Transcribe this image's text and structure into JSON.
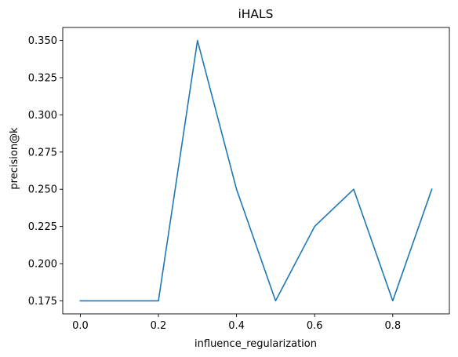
{
  "chart_data": {
    "type": "line",
    "title": "iHALS",
    "xlabel": "influence_regularization",
    "ylabel": "precision@k",
    "xlim": [
      -0.045,
      0.945
    ],
    "ylim": [
      0.16625,
      0.35875
    ],
    "xticks": [
      "0.0",
      "0.2",
      "0.4",
      "0.6",
      "0.8"
    ],
    "yticks": [
      "0.175",
      "0.200",
      "0.225",
      "0.250",
      "0.275",
      "0.300",
      "0.325",
      "0.350"
    ],
    "grid": false,
    "series": [
      {
        "color": "#1f77b4",
        "x": [
          0.0,
          0.1,
          0.2,
          0.3,
          0.4,
          0.5,
          0.6,
          0.7,
          0.8,
          0.9
        ],
        "y": [
          0.175,
          0.175,
          0.175,
          0.35,
          0.25,
          0.175,
          0.225,
          0.25,
          0.175,
          0.25
        ]
      }
    ]
  }
}
